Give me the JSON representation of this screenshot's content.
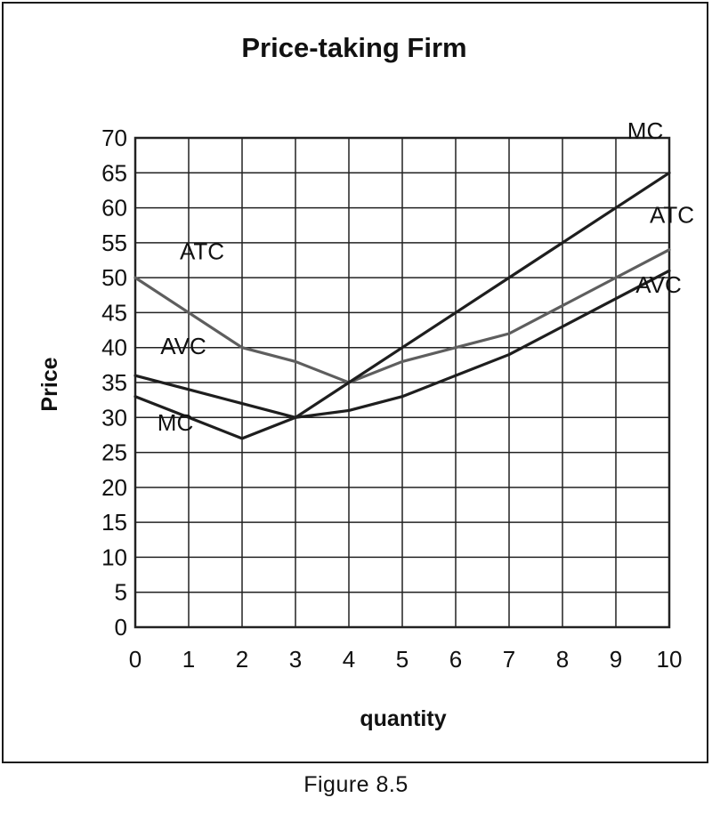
{
  "caption": "Figure 8.5",
  "colors": {
    "background": "#ffffff",
    "grid": "#222222",
    "text": "#111111",
    "dark_series": "#1e1e1e",
    "gray_series": "#5e5e5e"
  },
  "chart_data": {
    "type": "line",
    "title": "Price-taking Firm",
    "xlabel": "quantity",
    "ylabel": "Price",
    "xlim": [
      0,
      10
    ],
    "ylim": [
      0,
      70
    ],
    "x_ticks": [
      0,
      1,
      2,
      3,
      4,
      5,
      6,
      7,
      8,
      9,
      10
    ],
    "y_ticks": [
      0,
      5,
      10,
      15,
      20,
      25,
      30,
      35,
      40,
      45,
      50,
      55,
      60,
      65,
      70
    ],
    "grid": true,
    "x": [
      0,
      1,
      2,
      3,
      4,
      5,
      6,
      7,
      8,
      9,
      10
    ],
    "series": [
      {
        "name": "ATC",
        "color": "#5e5e5e",
        "values": [
          50,
          45,
          40,
          38,
          35,
          38,
          40,
          42,
          46,
          50,
          54
        ]
      },
      {
        "name": "AVC",
        "color": "#1e1e1e",
        "values": [
          36,
          34,
          32,
          30,
          31,
          33,
          36,
          39,
          43,
          47,
          51
        ]
      },
      {
        "name": "MC",
        "color": "#1e1e1e",
        "values": [
          33,
          30,
          27,
          30,
          35,
          40,
          45,
          50,
          55,
          60,
          65
        ]
      }
    ],
    "annotations": [
      {
        "text": "ATC",
        "x": 1.25,
        "y": 53.8
      },
      {
        "text": "AVC",
        "x": 0.9,
        "y": 40.2
      },
      {
        "text": "MC",
        "x": 0.75,
        "y": 29.3
      },
      {
        "text": "MC",
        "x": 9.55,
        "y": 71.0
      },
      {
        "text": "ATC",
        "x": 10.05,
        "y": 59.0
      },
      {
        "text": "AVC",
        "x": 9.8,
        "y": 49.0
      }
    ]
  }
}
